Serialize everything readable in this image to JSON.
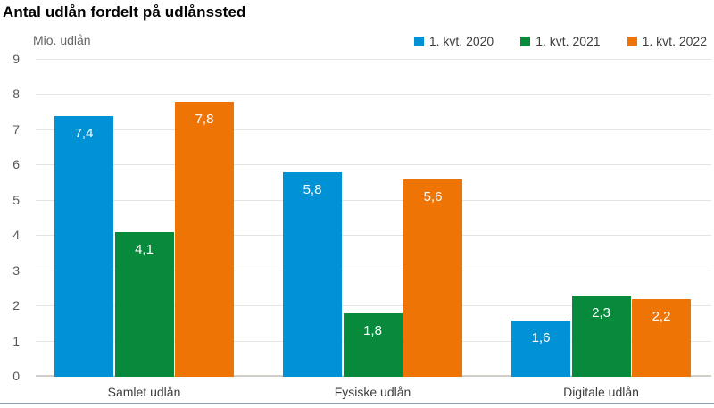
{
  "title": "Antal udlån fordelt på udlånssted",
  "chart_data": {
    "type": "bar",
    "title": "Antal udlån fordelt på udlånssted",
    "unit_label": "Mio. udlån",
    "categories": [
      "Samlet udlån",
      "Fysiske udlån",
      "Digitale udlån"
    ],
    "series": [
      {
        "name": "1. kvt. 2020",
        "color": "#0191d5",
        "values": [
          7.4,
          5.8,
          1.6
        ],
        "value_labels": [
          "7,4",
          "5,8",
          "1,6"
        ]
      },
      {
        "name": "1. kvt. 2021",
        "color": "#078a3c",
        "values": [
          4.1,
          1.8,
          2.3
        ],
        "value_labels": [
          "4,1",
          "1,8",
          "2,3"
        ]
      },
      {
        "name": "1. kvt. 2022",
        "color": "#ee7405",
        "values": [
          7.8,
          5.6,
          2.2
        ],
        "value_labels": [
          "7,8",
          "5,6",
          "2,2"
        ]
      }
    ],
    "ylim": [
      0,
      9
    ],
    "yticks": [
      0,
      1,
      2,
      3,
      4,
      5,
      6,
      7,
      8,
      9
    ],
    "grid": true,
    "legend_position": "top-right",
    "value_label_style": "white-inside-top"
  },
  "colors": {
    "background": "#ffffff",
    "series_blue": "#0191d5",
    "series_green": "#078a3c",
    "series_orange": "#ee7405",
    "gridline": "#e5e5df",
    "axis_text": "#585853",
    "category_text": "#3c3c3c",
    "unit_text": "#666666",
    "bottom_rule": "#8fa2ac"
  }
}
